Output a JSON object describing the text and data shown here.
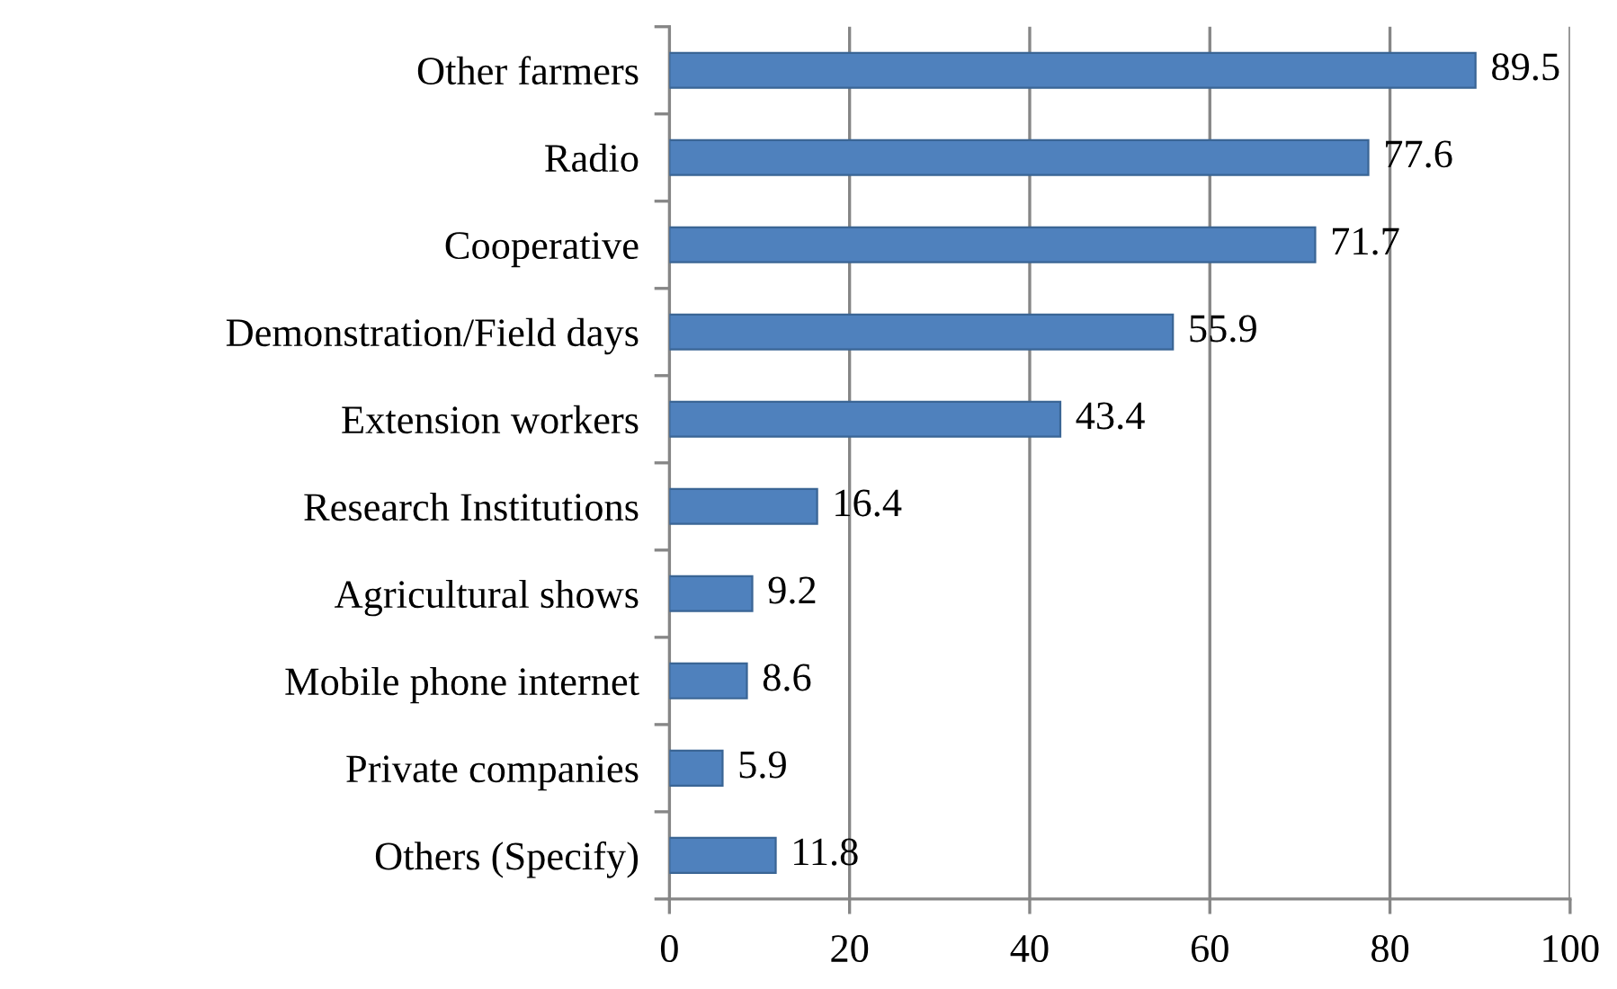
{
  "chart_data": {
    "type": "bar",
    "orientation": "horizontal",
    "categories": [
      "Other farmers",
      "Radio",
      "Cooperative",
      "Demonstration/Field days",
      "Extension workers",
      "Research Institutions",
      "Agricultural shows",
      "Mobile phone internet",
      "Private companies",
      "Others (Specify)"
    ],
    "values": [
      89.5,
      77.6,
      71.7,
      55.9,
      43.4,
      16.4,
      9.2,
      8.6,
      5.9,
      11.8
    ],
    "color": "#4f81bd",
    "xlim": [
      0,
      100
    ],
    "xticks": [
      0,
      20,
      40,
      60,
      80,
      100
    ],
    "grid": "x",
    "data_labels": true,
    "legend": false
  }
}
